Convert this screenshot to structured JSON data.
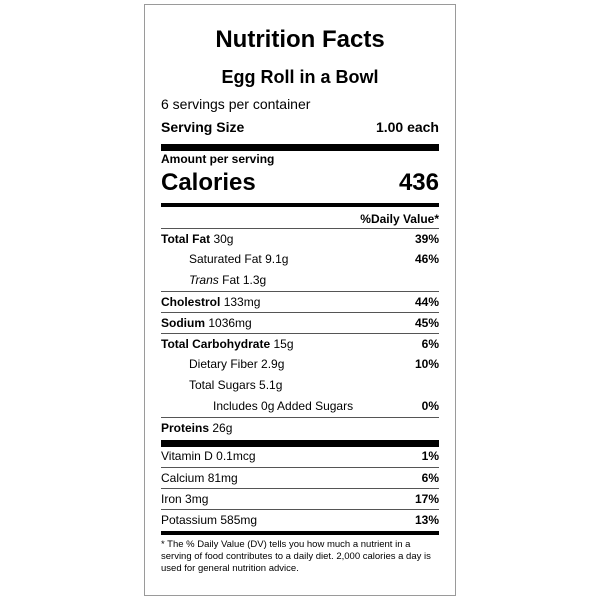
{
  "label": {
    "title": "Nutrition Facts",
    "product_name": "Egg Roll in a Bowl",
    "servings_per_container": "6 servings per container",
    "serving_size_label": "Serving Size",
    "serving_size_value": "1.00 each",
    "amount_per_serving": "Amount per serving",
    "calories_label": "Calories",
    "calories_value": "436",
    "daily_value_header": "%Daily Value*",
    "nutrients": [
      {
        "name": "Total Fat",
        "amount": "30g",
        "dv": "39%"
      },
      {
        "name": "Saturated Fat",
        "amount": "9.1g",
        "dv": "46%"
      },
      {
        "name": "Trans",
        "amount": "Fat 1.3g",
        "dv": ""
      },
      {
        "name": "Cholestrol",
        "amount": "133mg",
        "dv": "44%"
      },
      {
        "name": "Sodium",
        "amount": "1036mg",
        "dv": "45%"
      },
      {
        "name": "Total Carbohydrate",
        "amount": "15g",
        "dv": "6%"
      },
      {
        "name": "Dietary Fiber",
        "amount": "2.9g",
        "dv": "10%"
      },
      {
        "name": "Total Sugars",
        "amount": "5.1g",
        "dv": ""
      },
      {
        "name": "Includes 0g Added Sugars",
        "amount": "",
        "dv": "0%"
      },
      {
        "name": "Proteins",
        "amount": "26g",
        "dv": ""
      }
    ],
    "micronutrients": [
      {
        "name": "Vitamin D",
        "amount": "0.1mcg",
        "dv": "1%"
      },
      {
        "name": "Calcium",
        "amount": "81mg",
        "dv": "6%"
      },
      {
        "name": "Iron",
        "amount": "3mg",
        "dv": "17%"
      },
      {
        "name": "Potassium",
        "amount": "585mg",
        "dv": "13%"
      }
    ],
    "footnote": "* The % Daily Value (DV) tells you how much a nutrient in a serving of food contributes to a daily diet. 2,000 calories a day is used for general nutrition advice."
  }
}
